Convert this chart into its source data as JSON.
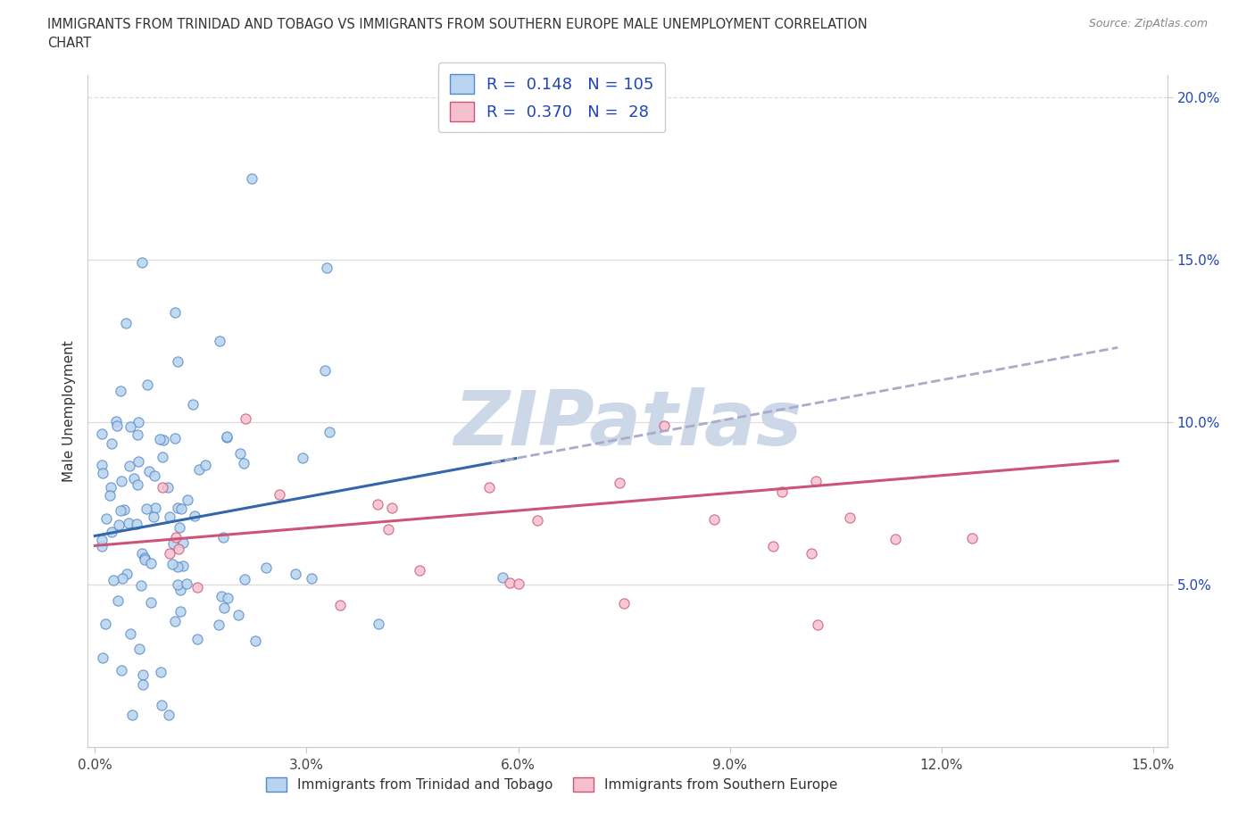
{
  "title_line1": "IMMIGRANTS FROM TRINIDAD AND TOBAGO VS IMMIGRANTS FROM SOUTHERN EUROPE MALE UNEMPLOYMENT CORRELATION",
  "title_line2": "CHART",
  "source": "Source: ZipAtlas.com",
  "xlabel_blue": "Immigrants from Trinidad and Tobago",
  "xlabel_pink": "Immigrants from Southern Europe",
  "ylabel": "Male Unemployment",
  "xlim": [
    0.0,
    0.15
  ],
  "ylim": [
    0.0,
    0.205
  ],
  "xtick_vals": [
    0.0,
    0.03,
    0.06,
    0.09,
    0.12,
    0.15
  ],
  "xtick_labels": [
    "0.0%",
    "3.0%",
    "6.0%",
    "9.0%",
    "12.0%",
    "15.0%"
  ],
  "ytick_vals": [
    0.05,
    0.1,
    0.15,
    0.2
  ],
  "ytick_labels": [
    "5.0%",
    "10.0%",
    "15.0%",
    "20.0%"
  ],
  "blue_R": "0.148",
  "blue_N": "105",
  "pink_R": "0.370",
  "pink_N": "28",
  "blue_fill": "#b8d4ee",
  "blue_edge": "#5588cc",
  "pink_fill": "#f5c0ce",
  "pink_edge": "#cc5577",
  "blue_line": "#3366aa",
  "pink_line": "#cc5577",
  "dash_color": "#aaaacc",
  "text_color": "#2244bb",
  "label_color": "#333333",
  "grid_color": "#dddddd",
  "background": "#ffffff",
  "legend_text_color": "#2244bb",
  "watermark_text": "ZIPatlas",
  "blue_intercept": 0.065,
  "blue_slope": 0.4,
  "pink_intercept": 0.062,
  "pink_slope": 0.18
}
